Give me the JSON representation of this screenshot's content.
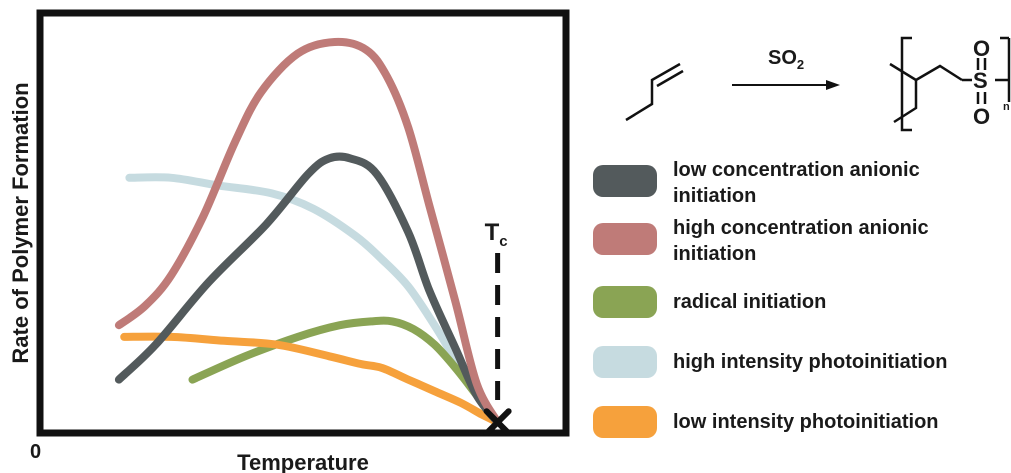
{
  "chart_data": {
    "type": "line",
    "title": "",
    "xlabel": "Temperature",
    "ylabel": "Rate of Polymer Formation",
    "origin_label": "0",
    "xlim": [
      0,
      100
    ],
    "ylim": [
      0,
      100
    ],
    "grid": false,
    "legend_position": "right",
    "marker": {
      "label": "Tc",
      "base": "T",
      "sub": "c",
      "x": 87
    },
    "series": [
      {
        "name": "low concentration anionic initiation",
        "color": "#535a5c",
        "x": [
          15,
          22,
          32,
          43,
          51,
          55,
          59,
          64,
          70,
          74,
          79,
          83,
          87
        ],
        "y": [
          13,
          22,
          38,
          53,
          66,
          70,
          70,
          66,
          51,
          36,
          21,
          9,
          2
        ]
      },
      {
        "name": "high concentration anionic initiation",
        "color": "#bf7b78",
        "x": [
          15,
          20,
          25,
          31,
          37,
          42,
          49,
          56,
          62,
          66,
          70,
          74,
          79,
          83,
          87
        ],
        "y": [
          27,
          32,
          40,
          55,
          74,
          87,
          97,
          100,
          98,
          91,
          78,
          58,
          33,
          12,
          2
        ]
      },
      {
        "name": "radical initiation",
        "color": "#8aa454",
        "x": [
          29,
          39,
          49,
          57,
          63,
          67,
          71,
          75,
          79,
          83,
          87
        ],
        "y": [
          13,
          19,
          24,
          27,
          28,
          28,
          26,
          22,
          16,
          9,
          2
        ]
      },
      {
        "name": "high intensity photoinitiation",
        "color": "#c6dbe0",
        "x": [
          17,
          25,
          34,
          44,
          52,
          60,
          65,
          70,
          75,
          79,
          83,
          87
        ],
        "y": [
          65,
          65,
          63,
          61,
          57,
          50,
          44,
          37,
          27,
          18,
          9,
          2
        ]
      },
      {
        "name": "low intensity photoinitiation",
        "color": "#f6a13c",
        "x": [
          16,
          25,
          35,
          45,
          55,
          61,
          65,
          70,
          75,
          80,
          84,
          87
        ],
        "y": [
          24,
          24,
          23,
          22,
          19,
          17,
          16,
          13,
          10,
          7,
          4,
          2
        ]
      }
    ]
  },
  "reaction": {
    "reagent": "SO2",
    "reagent_base": "SO",
    "reagent_sub": "2",
    "sulfur": "S",
    "oxygen": "O",
    "repeat_sub": "n"
  }
}
